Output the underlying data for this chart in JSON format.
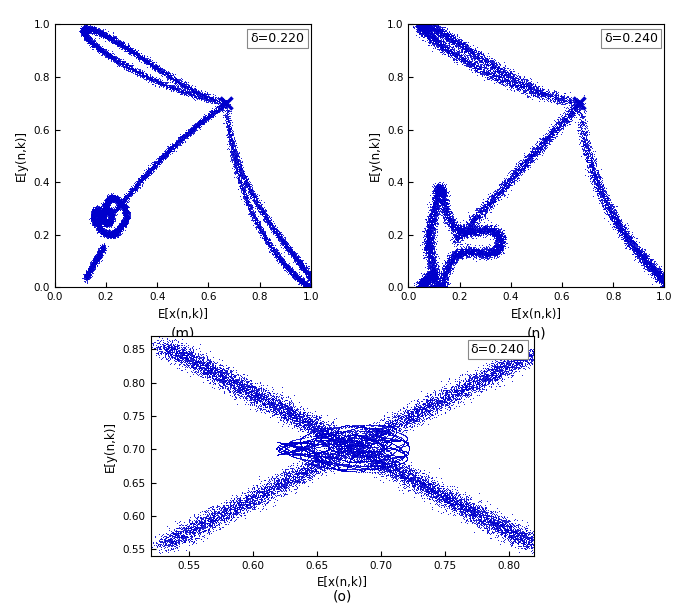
{
  "subplot_m": {
    "delta": 0.22,
    "label": "δ=0.220",
    "xlabel": "E[x(n,k)]",
    "ylabel": "E[y(n,k)]",
    "tag": "(m)",
    "xlim": [
      0,
      1
    ],
    "ylim": [
      0,
      1
    ],
    "fixed_point": [
      0.6667,
      0.7
    ],
    "xticks": [
      0,
      0.2,
      0.4,
      0.6,
      0.8,
      1.0
    ],
    "yticks": [
      0,
      0.2,
      0.4,
      0.6,
      0.8,
      1.0
    ]
  },
  "subplot_n": {
    "delta": 0.24,
    "label": "δ=0.240",
    "xlabel": "E[x(n,k)]",
    "ylabel": "E[y(n,k)]",
    "tag": "(n)",
    "xlim": [
      0,
      1
    ],
    "ylim": [
      0,
      1
    ],
    "fixed_point": [
      0.6667,
      0.7
    ],
    "xticks": [
      0,
      0.2,
      0.4,
      0.6,
      0.8,
      1.0
    ],
    "yticks": [
      0,
      0.2,
      0.4,
      0.6,
      0.8,
      1.0
    ]
  },
  "subplot_o": {
    "delta": 0.24,
    "label": "δ=0.240",
    "xlabel": "E[x(n,k)]",
    "ylabel": "E[y(n,k)]",
    "tag": "(o)",
    "xlim": [
      0.52,
      0.82
    ],
    "ylim": [
      0.54,
      0.87
    ],
    "fixed_point": [
      0.6667,
      0.7
    ],
    "xticks": [
      0.55,
      0.6,
      0.65,
      0.7,
      0.75,
      0.8
    ],
    "yticks": [
      0.55,
      0.6,
      0.65,
      0.7,
      0.75,
      0.8,
      0.85
    ]
  },
  "line_color": "#0000CC",
  "dot_size": 0.5,
  "fig_width": 6.85,
  "fig_height": 6.11
}
